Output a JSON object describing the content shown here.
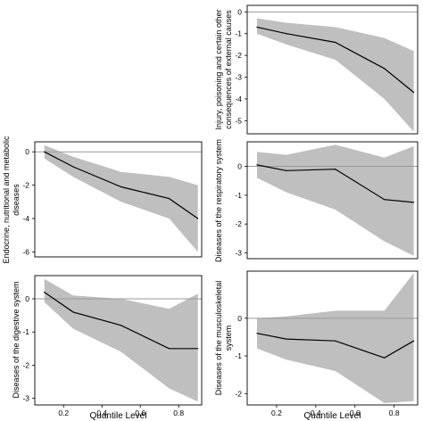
{
  "chart_data": [
    {
      "type": "area",
      "id": "injury",
      "ylabel": "Injury, poisoning and certain other consequences of external causes",
      "x": [
        0.1,
        0.25,
        0.5,
        0.75,
        0.9
      ],
      "values": [
        -0.7,
        -1.0,
        -1.4,
        -2.6,
        -3.7
      ],
      "lower": [
        -1.0,
        -1.5,
        -2.2,
        -4.0,
        -5.5
      ],
      "upper": [
        -0.3,
        -0.5,
        -0.7,
        -1.2,
        -1.8
      ],
      "xlim": [
        0.05,
        0.92
      ],
      "ylim": [
        -5.6,
        0.3
      ],
      "yticks": [
        0,
        -1,
        -2,
        -3,
        -4,
        -5
      ],
      "xticks": [],
      "zero_line": true
    },
    {
      "type": "area",
      "id": "endocrine",
      "ylabel": "Endocrine, nutritional and metabolic diseases",
      "x": [
        0.1,
        0.25,
        0.5,
        0.75,
        0.9
      ],
      "values": [
        0.0,
        -0.9,
        -2.1,
        -2.8,
        -4.0
      ],
      "lower": [
        -0.4,
        -1.5,
        -3.0,
        -4.0,
        -6.0
      ],
      "upper": [
        0.4,
        -0.3,
        -1.2,
        -1.5,
        -2.0
      ],
      "xlim": [
        0.05,
        0.92
      ],
      "ylim": [
        -6.3,
        0.6
      ],
      "yticks": [
        0,
        -2,
        -4,
        -6
      ],
      "xticks": [],
      "zero_line": true
    },
    {
      "type": "area",
      "id": "respiratory",
      "ylabel": "Diseases of the respiratory system",
      "x": [
        0.1,
        0.25,
        0.5,
        0.75,
        0.9
      ],
      "values": [
        0.05,
        -0.15,
        -0.1,
        -1.15,
        -1.25
      ],
      "lower": [
        -0.4,
        -0.9,
        -1.5,
        -2.6,
        -3.1
      ],
      "upper": [
        0.5,
        0.4,
        0.75,
        0.3,
        0.7
      ],
      "xlim": [
        0.05,
        0.92
      ],
      "ylim": [
        -3.2,
        0.85
      ],
      "yticks": [
        0,
        -1,
        -2,
        -3
      ],
      "xticks": [],
      "zero_line": true
    },
    {
      "type": "area",
      "id": "digestive",
      "ylabel": "Diseases of the digestive system",
      "x": [
        0.1,
        0.25,
        0.5,
        0.75,
        0.9
      ],
      "values": [
        0.2,
        -0.4,
        -0.8,
        -1.5,
        -1.5
      ],
      "lower": [
        -0.1,
        -0.9,
        -1.6,
        -2.7,
        -3.1
      ],
      "upper": [
        0.6,
        0.1,
        0.0,
        -0.3,
        0.15
      ],
      "xlim": [
        0.05,
        0.92
      ],
      "ylim": [
        -3.2,
        0.7
      ],
      "yticks": [
        0,
        -1,
        -2,
        -3
      ],
      "xticks": [
        0.2,
        0.4,
        0.6,
        0.8
      ],
      "xlabel": "Quantile Level",
      "zero_line": true
    },
    {
      "type": "area",
      "id": "musculoskeletal",
      "ylabel": "Diseases of the musculoskeletal system",
      "x": [
        0.1,
        0.25,
        0.5,
        0.75,
        0.9
      ],
      "values": [
        -0.4,
        -0.55,
        -0.6,
        -1.05,
        -0.6
      ],
      "lower": [
        -0.8,
        -1.1,
        -1.4,
        -2.25,
        -2.2
      ],
      "upper": [
        0.0,
        0.05,
        0.2,
        0.2,
        1.2
      ],
      "xlim": [
        0.05,
        0.92
      ],
      "ylim": [
        -2.3,
        1.25
      ],
      "yticks": [
        0,
        -1,
        -2
      ],
      "xticks": [
        0.2,
        0.4,
        0.6,
        0.8
      ],
      "xlabel": "Quantile Level",
      "zero_line": true
    }
  ]
}
